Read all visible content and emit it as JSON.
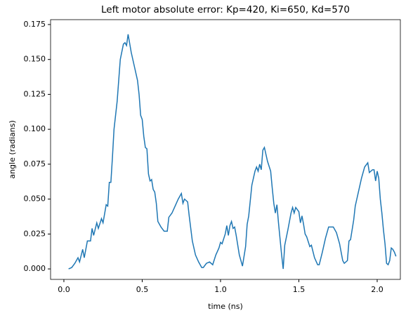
{
  "chart_data": {
    "type": "line",
    "title": "Left motor absolute error: Kp=420, Ki=650, Kd=570",
    "x_label": "time (ns)",
    "y_label": "angle (radians)",
    "xlim": [
      -0.085,
      2.148
    ],
    "ylim": [
      -0.0075,
      0.1785
    ],
    "xticks": [
      {
        "value": 0,
        "label": "0.0"
      },
      0.5,
      {
        "value": 1,
        "label": "1.0"
      },
      1.5,
      {
        "value": 2,
        "label": "2.0"
      }
    ],
    "yticks": [
      {
        "value": 0,
        "label": "0.000"
      },
      0.025,
      {
        "value": 0.05,
        "label": "0.050"
      },
      0.075,
      {
        "value": 0.1,
        "label": "0.100"
      },
      0.125,
      {
        "value": 0.15,
        "label": "0.150"
      },
      0.175
    ],
    "grid": false,
    "series": [
      {
        "color": "#1f77b4",
        "x": [
          0.03,
          0.05,
          0.07,
          0.09,
          0.1,
          0.12,
          0.13,
          0.15,
          0.17,
          0.18,
          0.19,
          0.21,
          0.22,
          0.24,
          0.25,
          0.27,
          0.28,
          0.29,
          0.3,
          0.31,
          0.32,
          0.34,
          0.36,
          0.38,
          0.39,
          0.4,
          0.41,
          0.43,
          0.45,
          0.47,
          0.48,
          0.49,
          0.5,
          0.51,
          0.52,
          0.53,
          0.54,
          0.55,
          0.56,
          0.57,
          0.58,
          0.59,
          0.6,
          0.62,
          0.64,
          0.66,
          0.67,
          0.69,
          0.71,
          0.73,
          0.75,
          0.76,
          0.77,
          0.79,
          0.8,
          0.82,
          0.84,
          0.86,
          0.88,
          0.89,
          0.91,
          0.93,
          0.95,
          0.97,
          0.99,
          1.0,
          1.01,
          1.03,
          1.04,
          1.05,
          1.06,
          1.07,
          1.08,
          1.09,
          1.1,
          1.12,
          1.14,
          1.16,
          1.17,
          1.18,
          1.2,
          1.22,
          1.23,
          1.24,
          1.25,
          1.26,
          1.27,
          1.28,
          1.3,
          1.32,
          1.33,
          1.34,
          1.35,
          1.36,
          1.37,
          1.39,
          1.4,
          1.41,
          1.43,
          1.45,
          1.46,
          1.47,
          1.48,
          1.5,
          1.51,
          1.52,
          1.53,
          1.54,
          1.55,
          1.57,
          1.58,
          1.6,
          1.62,
          1.63,
          1.65,
          1.67,
          1.69,
          1.71,
          1.72,
          1.74,
          1.76,
          1.77,
          1.78,
          1.79,
          1.81,
          1.82,
          1.83,
          1.85,
          1.86,
          1.88,
          1.9,
          1.92,
          1.94,
          1.95,
          1.97,
          1.98,
          1.99,
          2.0,
          2.01,
          2.02,
          2.03,
          2.04,
          2.05,
          2.06,
          2.07,
          2.08,
          2.09,
          2.1,
          2.11,
          2.12
        ],
        "values": [
          0.0,
          0.001,
          0.004,
          0.008,
          0.005,
          0.014,
          0.008,
          0.02,
          0.02,
          0.029,
          0.024,
          0.033,
          0.029,
          0.036,
          0.033,
          0.046,
          0.045,
          0.062,
          0.062,
          0.08,
          0.1,
          0.12,
          0.15,
          0.161,
          0.162,
          0.16,
          0.168,
          0.155,
          0.145,
          0.135,
          0.125,
          0.11,
          0.107,
          0.095,
          0.087,
          0.086,
          0.068,
          0.063,
          0.064,
          0.057,
          0.055,
          0.047,
          0.034,
          0.03,
          0.027,
          0.027,
          0.037,
          0.04,
          0.045,
          0.05,
          0.054,
          0.047,
          0.05,
          0.048,
          0.038,
          0.02,
          0.01,
          0.005,
          0.001,
          0.001,
          0.004,
          0.005,
          0.003,
          0.01,
          0.015,
          0.019,
          0.018,
          0.025,
          0.031,
          0.024,
          0.031,
          0.034,
          0.029,
          0.03,
          0.024,
          0.01,
          0.002,
          0.016,
          0.032,
          0.038,
          0.06,
          0.07,
          0.073,
          0.07,
          0.075,
          0.071,
          0.085,
          0.087,
          0.077,
          0.07,
          0.058,
          0.047,
          0.04,
          0.046,
          0.033,
          0.01,
          0.0,
          0.017,
          0.028,
          0.04,
          0.044,
          0.04,
          0.044,
          0.041,
          0.033,
          0.038,
          0.032,
          0.025,
          0.023,
          0.016,
          0.017,
          0.008,
          0.003,
          0.003,
          0.012,
          0.022,
          0.03,
          0.03,
          0.03,
          0.026,
          0.018,
          0.012,
          0.006,
          0.004,
          0.006,
          0.02,
          0.021,
          0.035,
          0.045,
          0.055,
          0.065,
          0.073,
          0.076,
          0.069,
          0.071,
          0.071,
          0.063,
          0.07,
          0.065,
          0.05,
          0.04,
          0.028,
          0.018,
          0.004,
          0.003,
          0.006,
          0.015,
          0.014,
          0.012,
          0.009
        ]
      }
    ]
  }
}
